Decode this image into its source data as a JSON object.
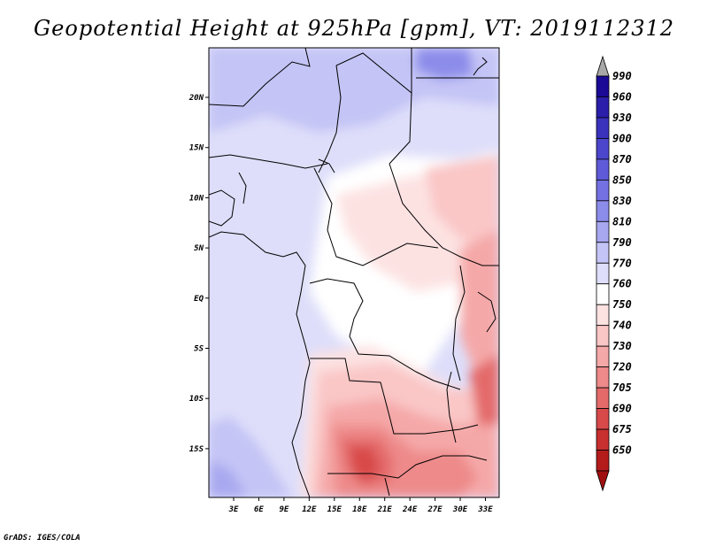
{
  "title": "Geopotential Height at 925hPa [gpm], VT: 2019112312",
  "footer": "GrADS: IGES/COLA",
  "map": {
    "lon_ticks": [
      "3E",
      "6E",
      "9E",
      "12E",
      "15E",
      "18E",
      "21E",
      "24E",
      "27E",
      "30E",
      "33E"
    ],
    "lat_ticks": [
      "20N",
      "15N",
      "10N",
      "5N",
      "EQ",
      "5S",
      "10S",
      "15S"
    ]
  },
  "colorbar": {
    "labels": [
      "990",
      "960",
      "930",
      "900",
      "870",
      "850",
      "830",
      "810",
      "790",
      "770",
      "760",
      "750",
      "740",
      "730",
      "720",
      "705",
      "690",
      "675",
      "650"
    ],
    "colors": [
      "#1a0a96",
      "#2a1eaa",
      "#3a32bc",
      "#4c46cc",
      "#5e5ad8",
      "#7472e2",
      "#8c8cea",
      "#a8a8f0",
      "#c4c4f6",
      "#dedefa",
      "#ffffff",
      "#fde2e2",
      "#fac6c6",
      "#f5a8a8",
      "#ee8a8a",
      "#e46a6a",
      "#d84a4a",
      "#c83030",
      "#b41c1c"
    ],
    "top_arrow_color": "#a8a8a8",
    "bottom_arrow_color": "#a01010"
  }
}
